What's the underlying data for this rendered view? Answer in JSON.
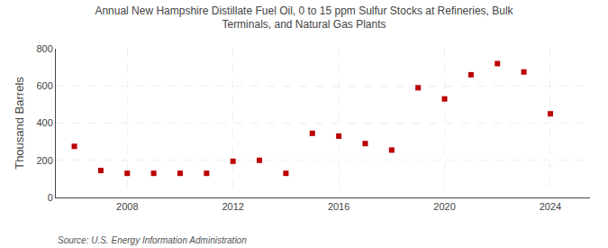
{
  "chart_data": {
    "type": "scatter",
    "title": "Annual New Hampshire Distillate Fuel Oil, 0 to 15 ppm Sulfur Stocks at Refineries, Bulk\nTerminals, and Natural Gas Plants",
    "ylabel": "Thousand Barrels",
    "annotations": [
      "Source: U.S. Energy Information Administration"
    ],
    "x": [
      2006,
      2007,
      2008,
      2009,
      2010,
      2011,
      2012,
      2013,
      2014,
      2015,
      2016,
      2017,
      2018,
      2019,
      2020,
      2021,
      2022,
      2023,
      2024
    ],
    "values": [
      275,
      145,
      130,
      130,
      130,
      130,
      195,
      200,
      130,
      345,
      330,
      290,
      255,
      590,
      530,
      660,
      720,
      675,
      450
    ],
    "color": "#bb0000",
    "marker": "square",
    "xlim": [
      2005.3,
      2025.5
    ],
    "xticks": [
      2008,
      2012,
      2016,
      2020,
      2024
    ],
    "ylim": [
      0,
      800
    ],
    "yticks": [
      0,
      200,
      400,
      600,
      800
    ],
    "grid": true
  }
}
